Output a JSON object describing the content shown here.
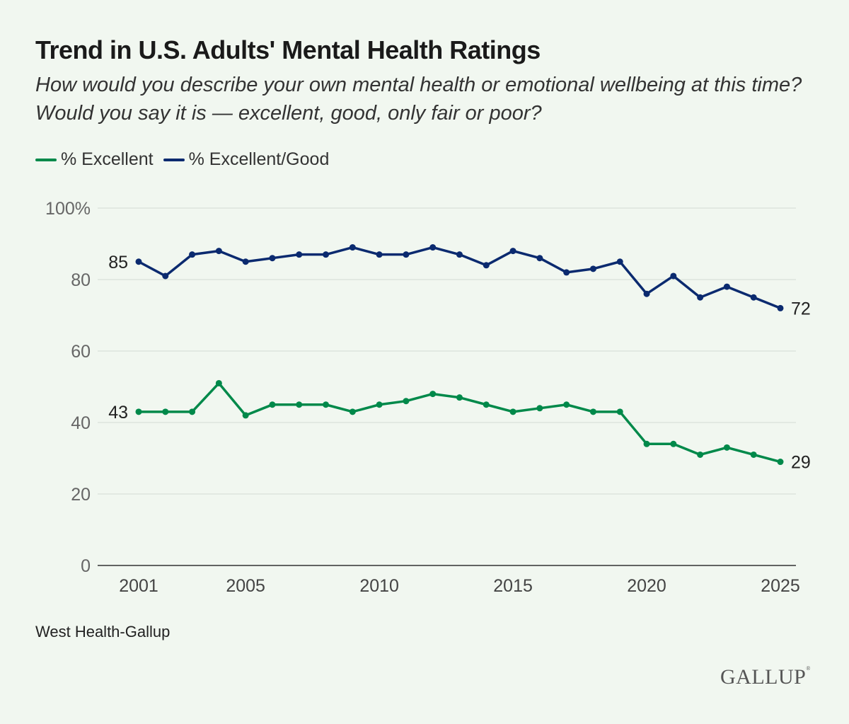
{
  "chart_data": {
    "type": "line",
    "title": "Trend in U.S. Adults' Mental Health Ratings",
    "subtitle": "How would you describe your own mental health or emotional wellbeing at this time? Would you say it is — excellent, good, only fair or poor?",
    "x": [
      2001,
      2002,
      2003,
      2004,
      2005,
      2006,
      2007,
      2008,
      2009,
      2010,
      2011,
      2012,
      2013,
      2014,
      2015,
      2016,
      2017,
      2018,
      2019,
      2020,
      2021,
      2022,
      2023,
      2024,
      2025
    ],
    "series": [
      {
        "name": "% Excellent",
        "color": "#00894a",
        "values": [
          43,
          43,
          43,
          51,
          42,
          45,
          45,
          45,
          43,
          45,
          46,
          48,
          47,
          45,
          43,
          44,
          45,
          43,
          43,
          34,
          34,
          31,
          33,
          31,
          29
        ],
        "start_label": "43",
        "end_label": "29"
      },
      {
        "name": "% Excellent/Good",
        "color": "#0b2a6f",
        "values": [
          85,
          81,
          87,
          88,
          85,
          86,
          87,
          87,
          89,
          87,
          87,
          89,
          87,
          84,
          88,
          86,
          82,
          83,
          85,
          76,
          81,
          75,
          78,
          75,
          72
        ],
        "start_label": "85",
        "end_label": "72"
      }
    ],
    "x_ticks": [
      "2001",
      "2005",
      "2010",
      "2015",
      "2020",
      "2025"
    ],
    "y_ticks": [
      "0",
      "20",
      "40",
      "60",
      "80",
      "100%"
    ],
    "ylim": [
      0,
      100
    ],
    "xlim": [
      2001,
      2025
    ],
    "grid": true,
    "legend_position": "top-left"
  },
  "source": "West Health-Gallup",
  "logo": "GALLUP"
}
